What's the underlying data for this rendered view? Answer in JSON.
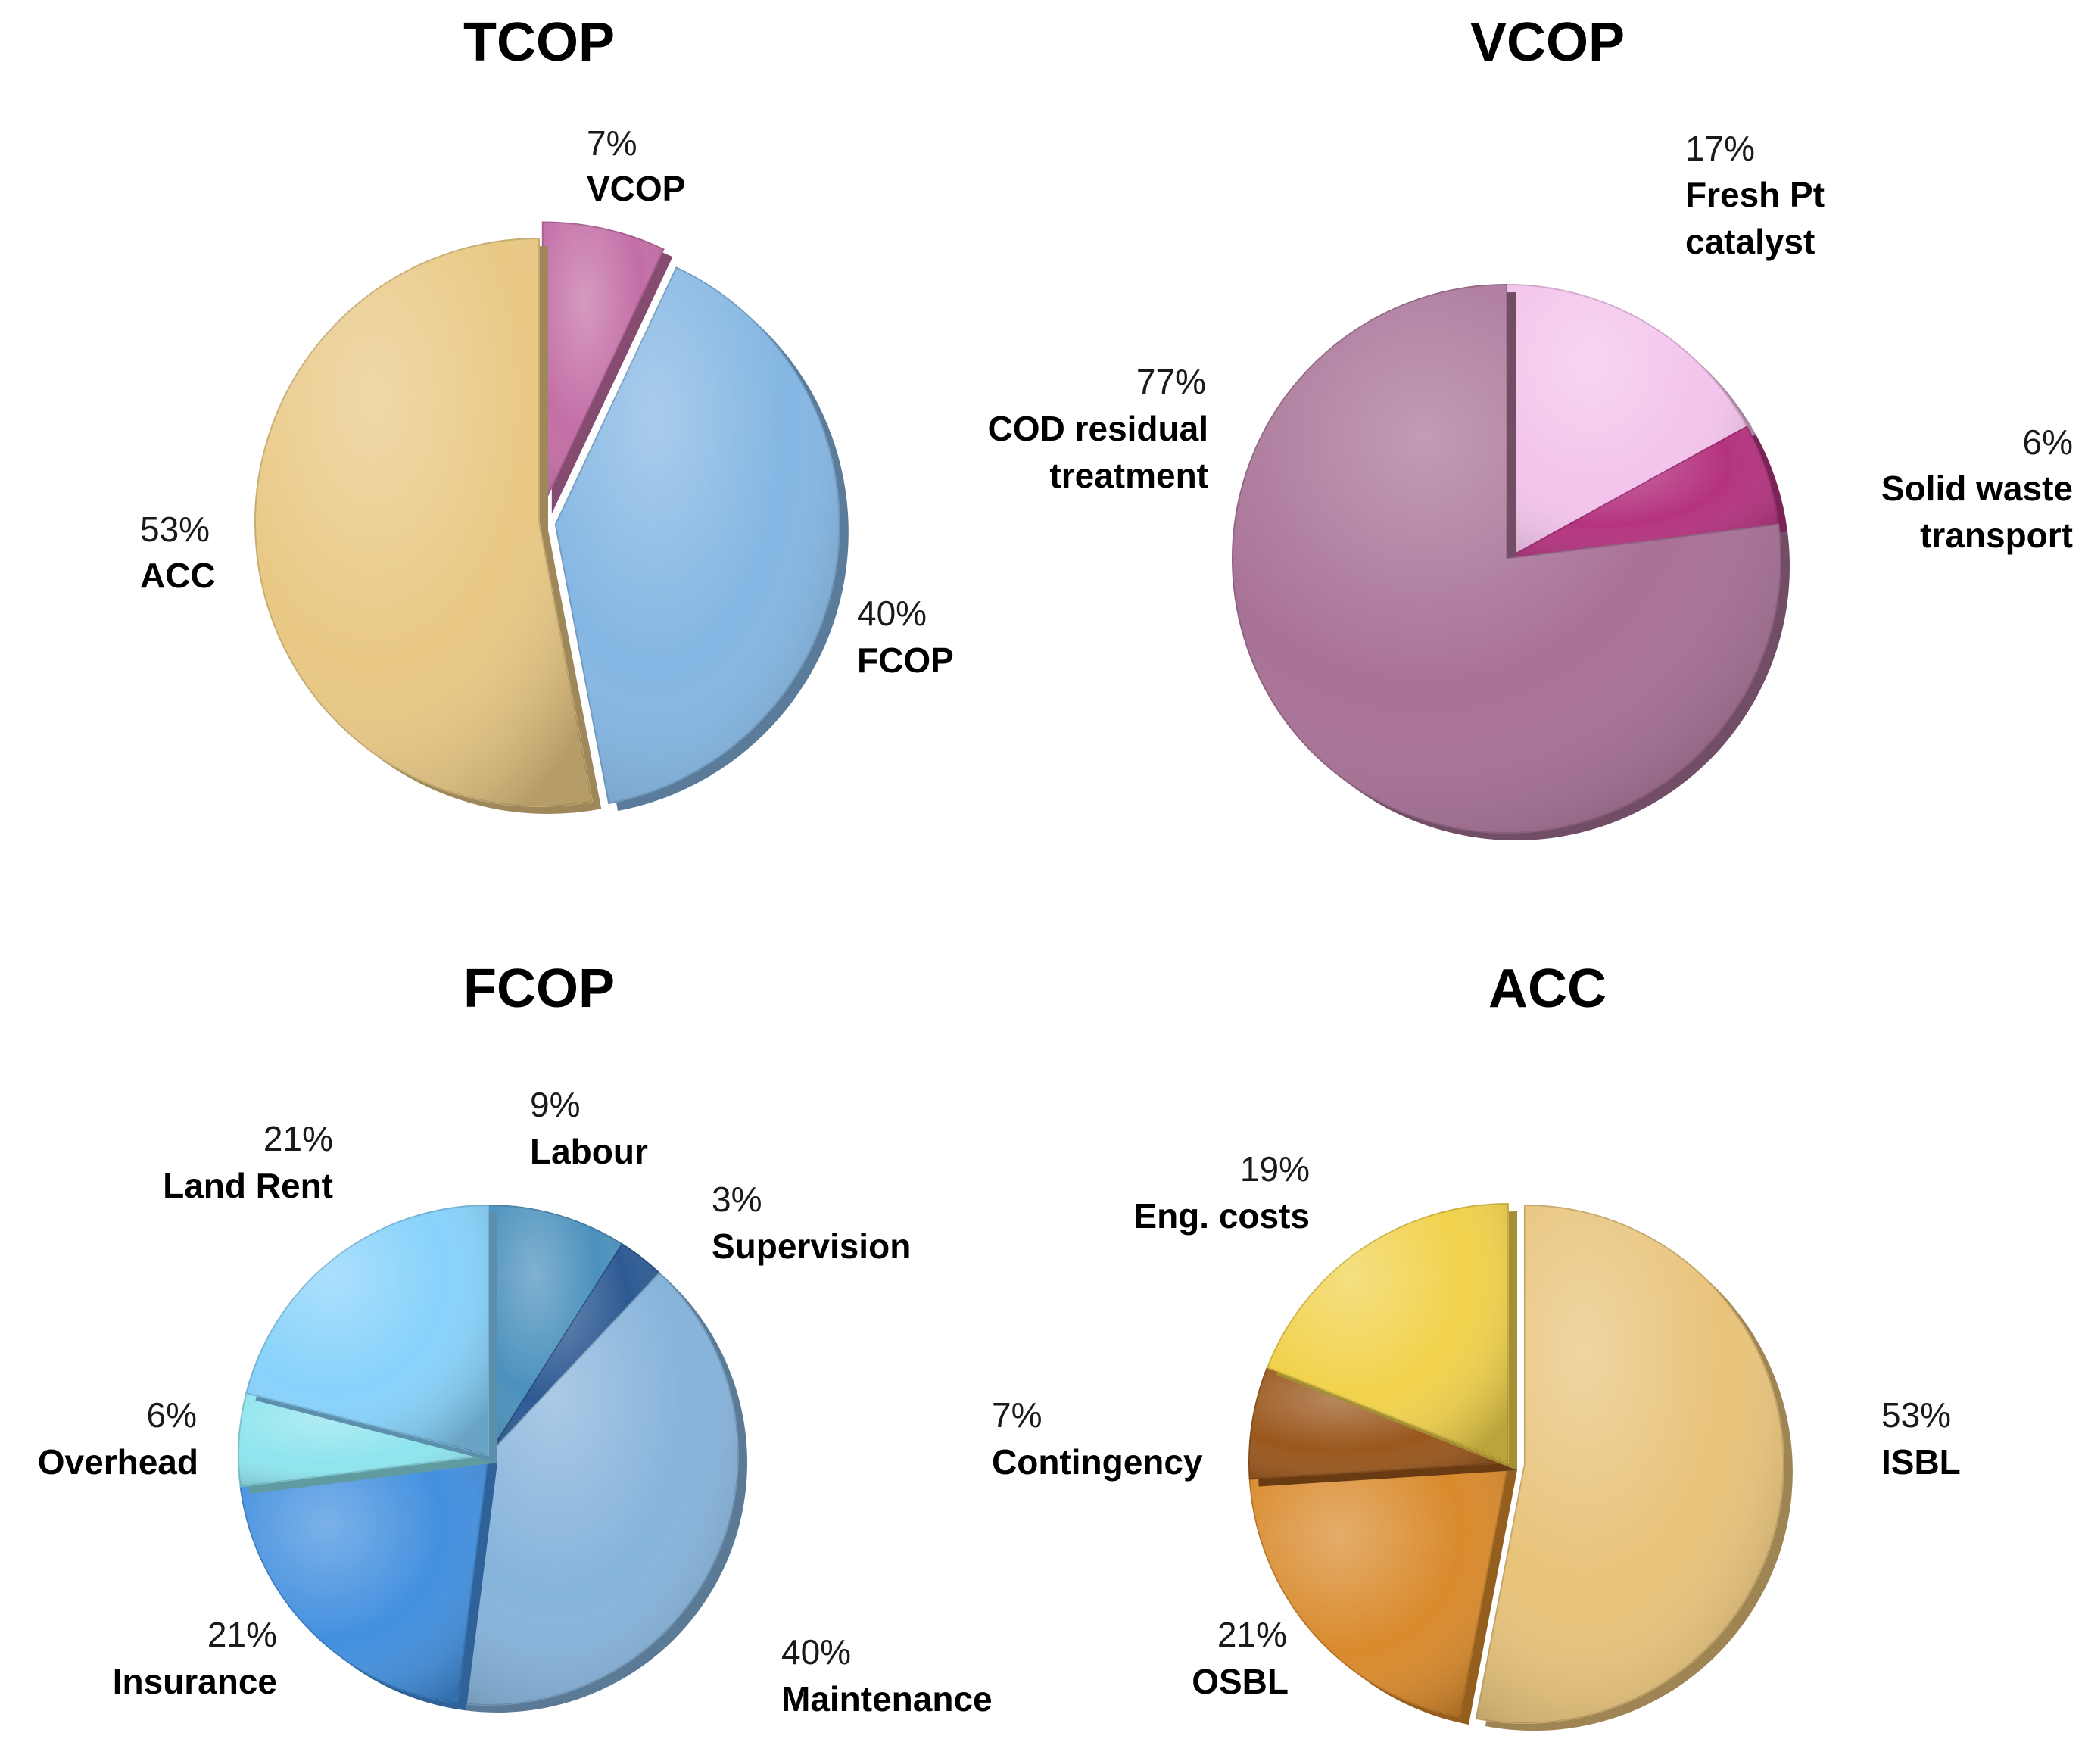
{
  "chart_data": [
    {
      "type": "pie",
      "title": "TCOP",
      "slices": [
        {
          "label": "VCOP",
          "value": 7,
          "pct_text": "7%",
          "color": "#c36ea6",
          "lines": [
            "VCOP"
          ]
        },
        {
          "label": "FCOP",
          "value": 40,
          "pct_text": "40%",
          "color": "#84b6e3",
          "lines": [
            "FCOP"
          ]
        },
        {
          "label": "ACC",
          "value": 53,
          "pct_text": "53%",
          "color": "#e9c884",
          "lines": [
            "ACC"
          ]
        }
      ]
    },
    {
      "type": "pie",
      "title": "VCOP",
      "slices": [
        {
          "label": "Fresh Pt catalyst",
          "value": 17,
          "pct_text": "17%",
          "color": "#f4c4ec",
          "lines": [
            "Fresh Pt",
            "catalyst"
          ]
        },
        {
          "label": "Solid waste transport",
          "value": 6,
          "pct_text": "6%",
          "color": "#b4337f",
          "lines": [
            "Solid waste",
            "transport"
          ]
        },
        {
          "label": "COD residual treatment",
          "value": 77,
          "pct_text": "77%",
          "color": "#a87196",
          "lines": [
            "COD residual",
            "treatment"
          ]
        }
      ]
    },
    {
      "type": "pie",
      "title": "FCOP",
      "slices": [
        {
          "label": "Labour",
          "value": 9,
          "pct_text": "9%",
          "color": "#4b91bd",
          "lines": [
            "Labour"
          ]
        },
        {
          "label": "Supervision",
          "value": 3,
          "pct_text": "3%",
          "color": "#2e5a93",
          "lines": [
            "Supervision"
          ]
        },
        {
          "label": "Maintenance",
          "value": 40,
          "pct_text": "40%",
          "color": "#86b3db",
          "lines": [
            "Maintenance"
          ]
        },
        {
          "label": "Insurance",
          "value": 21,
          "pct_text": "21%",
          "color": "#4390df",
          "lines": [
            "Insurance"
          ]
        },
        {
          "label": "Overhead",
          "value": 6,
          "pct_text": "6%",
          "color": "#8ee4ee",
          "lines": [
            "Overhead"
          ]
        },
        {
          "label": "Land Rent",
          "value": 21,
          "pct_text": "21%",
          "color": "#87d2fb",
          "lines": [
            "Land Rent"
          ]
        }
      ]
    },
    {
      "type": "pie",
      "title": "ACC",
      "slices": [
        {
          "label": "ISBL",
          "value": 53,
          "pct_text": "53%",
          "color": "#e8c37a",
          "lines": [
            "ISBL"
          ]
        },
        {
          "label": "OSBL",
          "value": 21,
          "pct_text": "21%",
          "color": "#d98a2c",
          "lines": [
            "OSBL"
          ]
        },
        {
          "label": "Contingency",
          "value": 7,
          "pct_text": "7%",
          "color": "#9a571c",
          "lines": [
            "Contingency"
          ]
        },
        {
          "label": "Eng. costs",
          "value": 19,
          "pct_text": "19%",
          "color": "#f1d24c",
          "lines": [
            "Eng. costs"
          ]
        }
      ]
    }
  ]
}
